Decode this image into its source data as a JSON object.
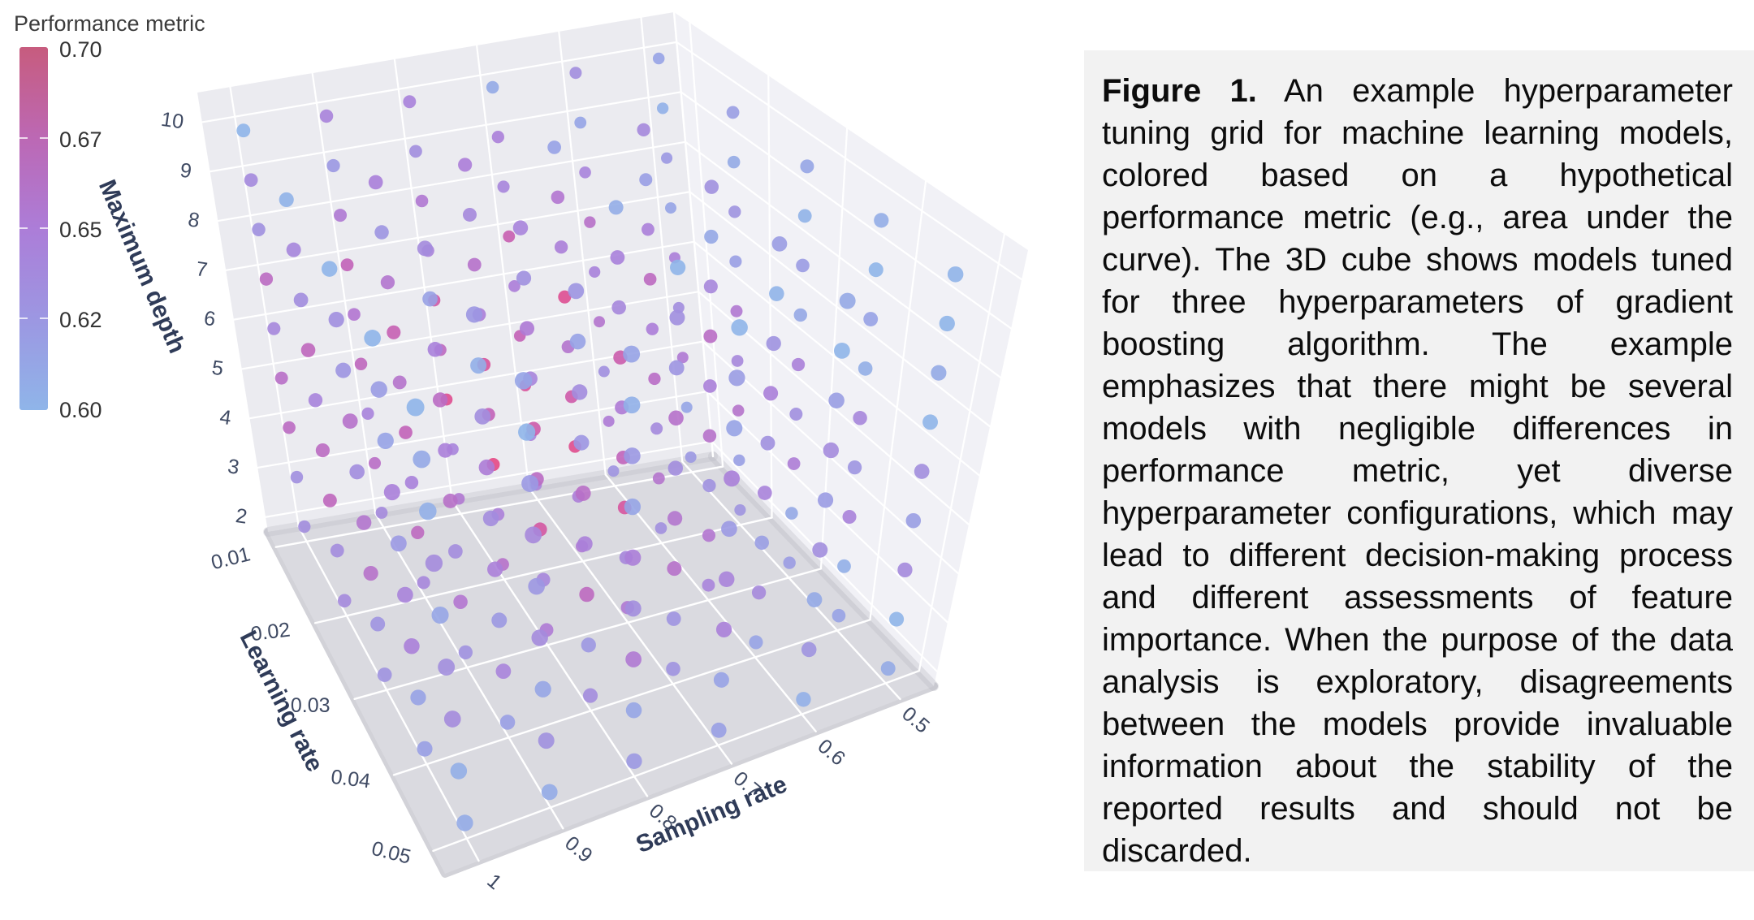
{
  "colorbar": {
    "title": "Performance metric",
    "tick_labels": [
      "0.70",
      "0.67",
      "0.65",
      "0.62",
      "0.60"
    ],
    "gradient_top_to_bottom": [
      "#C75C7E",
      "#BC68B4",
      "#AC7DD8",
      "#9C97E2",
      "#8FB5E9"
    ]
  },
  "caption": {
    "label": "Figure 1.",
    "body": "An example hyperparameter tuning grid for machine learning models, colored based on a hypothetical performance metric (e.g., area under the curve). The 3D cube shows models tuned for three hyperparameters of gradient boosting algorithm. The example emphasizes that there might be several models with negligible differences in performance metric, yet diverse hyperparameter configurations, which may lead to different decision-making process and different assessments of feature importance. When the purpose of the data analysis is exploratory, disagreements between the models provide invaluable information about the stability of the reported results and should not be discarded."
  },
  "chart_data": {
    "type": "scatter",
    "subtype": "scatter3d-grid",
    "title": "",
    "axes": {
      "x": {
        "label": "Sampling rate",
        "tick_labels": [
          "1",
          "0.9",
          "0.8",
          "0.7",
          "0.6",
          "0.5"
        ],
        "range": [
          0.5,
          1.0
        ]
      },
      "y": {
        "label": "Learning rate",
        "tick_labels": [
          "0.01",
          "0.02",
          "0.03",
          "0.04",
          "0.05"
        ],
        "range": [
          0.01,
          0.05
        ]
      },
      "z": {
        "label": "Maximum depth",
        "tick_labels": [
          "2",
          "3",
          "4",
          "5",
          "6",
          "7",
          "8",
          "9",
          "10"
        ],
        "range": [
          2,
          10
        ]
      }
    },
    "color_metric": {
      "label": "Performance metric",
      "range": [
        0.6,
        0.7
      ]
    },
    "grid": {
      "sampling": [
        0.5,
        0.6,
        0.7,
        0.8,
        0.9,
        1.0
      ],
      "learning": [
        0.01,
        0.02,
        0.03,
        0.04,
        0.05
      ],
      "depth": [
        2,
        3,
        4,
        5,
        6,
        7,
        8,
        9,
        10
      ]
    },
    "metric_values_order": "metric_values[learning_index][sampling_index][depth_index]",
    "metric_values": [
      [
        [
          0.624,
          0.613,
          0.653,
          0.635,
          0.649,
          0.614,
          0.624,
          0.604,
          0.615
        ],
        [
          0.628,
          0.652,
          0.633,
          0.657,
          0.645,
          0.66,
          0.643,
          0.614,
          0.634
        ],
        [
          0.645,
          0.643,
          0.685,
          0.671,
          0.65,
          0.674,
          0.642,
          0.648,
          0.609
        ],
        [
          0.654,
          0.643,
          0.691,
          0.665,
          0.679,
          0.644,
          0.654,
          0.634,
          0.645
        ],
        [
          0.638,
          0.662,
          0.643,
          0.667,
          0.655,
          0.67,
          0.653,
          0.624,
          0.644
        ],
        [
          0.635,
          0.633,
          0.664,
          0.661,
          0.64,
          0.664,
          0.632,
          0.638,
          0.6
        ]
      ],
      [
        [
          0.629,
          0.618,
          0.658,
          0.64,
          0.654,
          0.619,
          0.629,
          0.609,
          0.62
        ],
        [
          0.633,
          0.657,
          0.638,
          0.662,
          0.65,
          0.665,
          0.648,
          0.619,
          0.639
        ],
        [
          0.652,
          0.65,
          0.692,
          0.678,
          0.657,
          0.69,
          0.649,
          0.655,
          0.616
        ],
        [
          0.659,
          0.648,
          0.697,
          0.67,
          0.684,
          0.649,
          0.659,
          0.639,
          0.65
        ],
        [
          0.641,
          0.665,
          0.646,
          0.67,
          0.658,
          0.673,
          0.656,
          0.627,
          0.647
        ],
        [
          0.638,
          0.636,
          0.667,
          0.664,
          0.643,
          0.667,
          0.635,
          0.641,
          0.602
        ]
      ],
      [
        [
          0.622,
          0.611,
          0.651,
          0.633,
          0.647,
          0.612,
          0.622,
          0.602,
          0.613
        ],
        [
          0.643,
          0.655,
          0.631,
          0.659,
          0.647,
          0.662,
          0.641,
          0.612,
          0.632
        ],
        [
          0.653,
          0.641,
          0.683,
          0.669,
          0.652,
          0.676,
          0.64,
          0.646,
          0.607
        ],
        [
          0.652,
          0.641,
          0.681,
          0.663,
          0.677,
          0.642,
          0.652,
          0.632,
          0.643
        ],
        [
          0.631,
          0.655,
          0.636,
          0.66,
          0.648,
          0.663,
          0.646,
          0.617,
          0.637
        ],
        [
          0.63,
          0.628,
          0.659,
          0.656,
          0.635,
          0.659,
          0.627,
          0.633,
          0.6
        ]
      ],
      [
        [
          0.616,
          0.605,
          0.645,
          0.627,
          0.641,
          0.606,
          0.616,
          0.598,
          0.607
        ],
        [
          0.615,
          0.639,
          0.62,
          0.644,
          0.632,
          0.647,
          0.63,
          0.601,
          0.621
        ],
        [
          0.63,
          0.628,
          0.659,
          0.656,
          0.635,
          0.659,
          0.627,
          0.633,
          0.596
        ],
        [
          0.636,
          0.625,
          0.665,
          0.647,
          0.661,
          0.626,
          0.636,
          0.616,
          0.627
        ],
        [
          0.619,
          0.643,
          0.624,
          0.648,
          0.636,
          0.651,
          0.634,
          0.605,
          0.625
        ],
        [
          0.618,
          0.616,
          0.647,
          0.644,
          0.623,
          0.647,
          0.615,
          0.621,
          0.6
        ]
      ],
      [
        [
          0.609,
          0.598,
          0.638,
          0.62,
          0.634,
          0.599,
          0.609,
          0.589,
          0.601
        ],
        [
          0.605,
          0.629,
          0.61,
          0.634,
          0.622,
          0.637,
          0.62,
          0.591,
          0.611
        ],
        [
          0.618,
          0.616,
          0.647,
          0.644,
          0.623,
          0.647,
          0.615,
          0.621,
          0.596
        ],
        [
          0.624,
          0.613,
          0.653,
          0.635,
          0.649,
          0.614,
          0.624,
          0.604,
          0.615
        ],
        [
          0.608,
          0.632,
          0.613,
          0.637,
          0.625,
          0.64,
          0.623,
          0.594,
          0.614
        ],
        [
          0.608,
          0.606,
          0.637,
          0.634,
          0.613,
          0.637,
          0.605,
          0.611,
          0.597
        ]
      ]
    ],
    "colorscale": [
      [
        0,
        "#8FB5E9"
      ],
      [
        0.25,
        "#9C97E2"
      ],
      [
        0.5,
        "#AC7DD8"
      ],
      [
        0.7,
        "#C263B8"
      ],
      [
        0.85,
        "#D9529A"
      ],
      [
        1,
        "#E8457E"
      ]
    ],
    "layout_hints": {
      "pane_colors": {
        "left_wall": "#EBEBF0",
        "right_wall": "#F1F1F6",
        "floor": "#DADAE0"
      },
      "gridline_color": "#FFFFFF",
      "marker_opacity": 0.9,
      "legend_position": "left-colorbar",
      "grid": true
    }
  }
}
